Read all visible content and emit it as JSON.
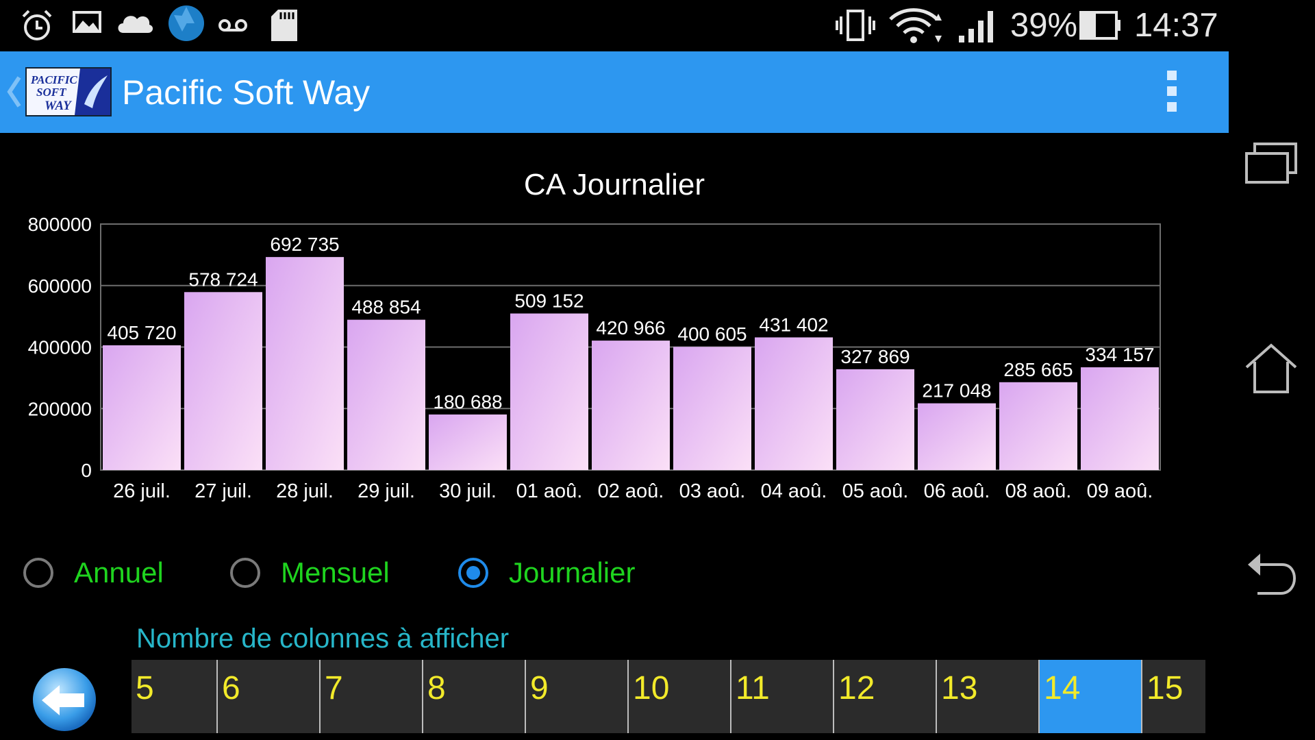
{
  "status_bar": {
    "icons": [
      "alarm-icon",
      "gallery-icon",
      "cloud-icon",
      "aperture-icon",
      "voicemail-icon",
      "sd-card-icon",
      "vibrate-icon",
      "wifi-icon",
      "signal-icon",
      "battery-icon"
    ],
    "battery_percent": "39%",
    "time": "14:37"
  },
  "action_bar": {
    "title": "Pacific Soft Way",
    "logo_text": "Pacific Soft Way"
  },
  "chart_data": {
    "type": "bar",
    "title": "CA Journalier",
    "categories": [
      "26 juil.",
      "27 juil.",
      "28 juil.",
      "29 juil.",
      "30 juil.",
      "01 aoû.",
      "02 aoû.",
      "03 aoû.",
      "04 aoû.",
      "05 aoû.",
      "06 aoû.",
      "08 aoû.",
      "09 aoû."
    ],
    "values": [
      405720,
      578724,
      692735,
      488854,
      180688,
      509152,
      420966,
      400605,
      431402,
      327869,
      217048,
      285665,
      334157
    ],
    "value_labels": [
      "405 720",
      "578 724",
      "692 735",
      "488 854",
      "180 688",
      "509 152",
      "420 966",
      "400 605",
      "431 402",
      "327 869",
      "217 048",
      "285 665",
      "334 157"
    ],
    "ylim": [
      0,
      800000
    ],
    "yticks": [
      "0",
      "200000",
      "400000",
      "600000",
      "800000"
    ],
    "grid": true,
    "bar_color_top": "#d9a6f0",
    "bar_color_bottom": "#fbe0f7"
  },
  "period_options": [
    {
      "label": "Annuel",
      "checked": false
    },
    {
      "label": "Mensuel",
      "checked": false
    },
    {
      "label": "Journalier",
      "checked": true
    }
  ],
  "columns_picker": {
    "label": "Nombre de colonnes à afficher",
    "options": [
      "5",
      "6",
      "7",
      "8",
      "9",
      "10",
      "11",
      "12",
      "13",
      "14",
      "15"
    ],
    "selected": "14"
  },
  "nav_bar": {
    "buttons": [
      "recent-apps-icon",
      "home-icon",
      "back-icon"
    ]
  },
  "colors": {
    "action_bar": "#2d97f0",
    "radio_label": "#1fd41f",
    "picker_label": "#27b6c9",
    "picker_text": "#f2ea2a"
  }
}
